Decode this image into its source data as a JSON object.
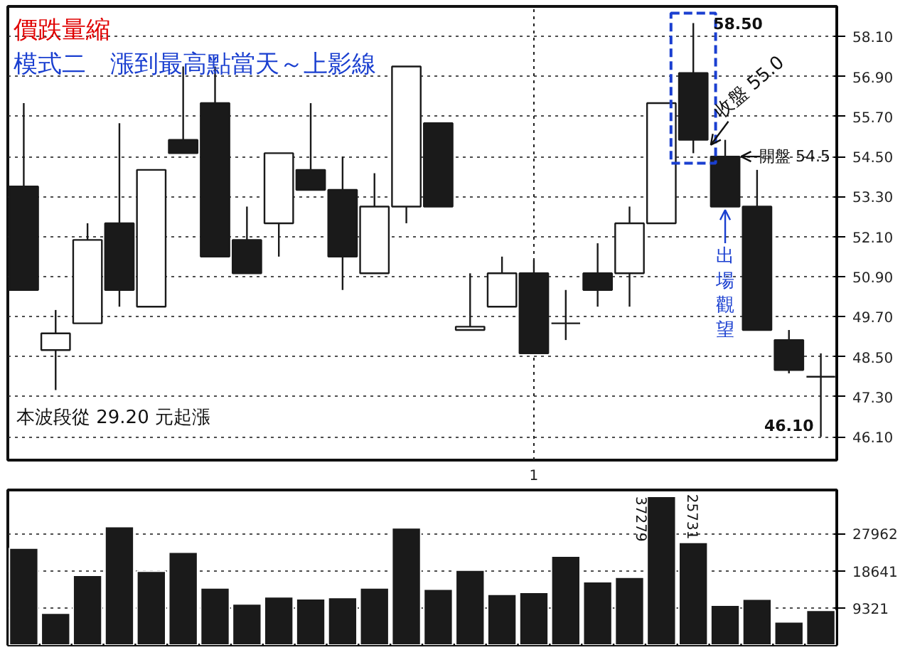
{
  "chart_data": [
    {
      "type": "candlestick",
      "title": "價跌量縮",
      "subtitle": "模式二　漲到最高點當天～上影線",
      "color": "#1a1a1a",
      "categories": [
        null,
        null,
        null,
        null,
        null,
        null,
        null,
        null,
        null,
        null,
        null,
        null,
        null,
        null,
        null,
        null,
        null,
        null,
        null,
        null,
        null,
        null,
        null,
        null,
        null,
        null
      ],
      "ohlc": [
        [
          53.6,
          56.1,
          50.5,
          50.5
        ],
        [
          48.7,
          49.9,
          47.5,
          49.2
        ],
        [
          49.5,
          52.5,
          49.5,
          52.0
        ],
        [
          52.5,
          55.5,
          50.0,
          50.5
        ],
        [
          50.0,
          54.1,
          50.0,
          54.1
        ],
        [
          55.0,
          57.2,
          54.6,
          54.6
        ],
        [
          56.1,
          57.2,
          51.5,
          51.5
        ],
        [
          52.0,
          53.0,
          51.0,
          51.0
        ],
        [
          52.5,
          54.6,
          51.5,
          54.6
        ],
        [
          54.1,
          56.1,
          53.5,
          53.5
        ],
        [
          53.5,
          54.5,
          50.5,
          51.5
        ],
        [
          51.0,
          54.0,
          51.0,
          53.0
        ],
        [
          53.0,
          57.2,
          52.5,
          57.2
        ],
        [
          55.5,
          55.5,
          53.0,
          53.0
        ],
        [
          49.3,
          51.0,
          49.3,
          49.4
        ],
        [
          50.0,
          51.5,
          50.0,
          51.0
        ],
        [
          51.0,
          51.4,
          48.6,
          48.6
        ],
        [
          49.5,
          50.5,
          49.0,
          49.5
        ],
        [
          51.0,
          51.9,
          50.0,
          50.5
        ],
        [
          51.0,
          53.0,
          50.0,
          52.5
        ],
        [
          52.5,
          56.1,
          52.5,
          56.1
        ],
        [
          57.0,
          58.5,
          54.6,
          55.0
        ],
        [
          54.5,
          55.0,
          53.0,
          53.0
        ],
        [
          53.0,
          54.1,
          49.3,
          49.3
        ],
        [
          49.0,
          49.3,
          48.0,
          48.1
        ],
        [
          47.9,
          48.6,
          46.1,
          47.9
        ]
      ],
      "ylim": [
        45.4,
        59.0
      ],
      "yticks": [
        {
          "value": 46.1,
          "label": "46.10"
        },
        {
          "value": 47.3,
          "label": "47.30"
        },
        {
          "value": 48.5,
          "label": "48.50"
        },
        {
          "value": 49.7,
          "label": "49.70"
        },
        {
          "value": 50.9,
          "label": "50.90"
        },
        {
          "value": 52.1,
          "label": "52.10"
        },
        {
          "value": 53.3,
          "label": "53.30"
        },
        {
          "value": 54.5,
          "label": "54.50"
        },
        {
          "value": 55.7,
          "label": "55.70"
        },
        {
          "value": 56.9,
          "label": "56.90"
        },
        {
          "value": 58.1,
          "label": "58.10"
        }
      ],
      "grid": true,
      "annotations": [
        "58.50",
        "收盤 55.0",
        "開盤 54.5",
        "出場觀望",
        "46.10",
        "本波段從 29.20 元起漲",
        "1"
      ]
    },
    {
      "type": "bar",
      "color": "#1a1a1a",
      "categories": [
        null,
        null,
        null,
        null,
        null,
        null,
        null,
        null,
        null,
        null,
        null,
        null,
        null,
        null,
        null,
        null,
        null,
        null,
        null,
        null,
        null,
        null,
        null,
        null,
        null,
        null
      ],
      "values": [
        24300,
        8000,
        17500,
        29700,
        18500,
        23300,
        14300,
        10300,
        12100,
        11600,
        11900,
        14300,
        29400,
        14000,
        18800,
        12700,
        13200,
        22300,
        15900,
        17000,
        37279,
        25731,
        10000,
        11500,
        5800,
        8700
      ],
      "value_labels": [
        null,
        null,
        null,
        null,
        null,
        null,
        null,
        null,
        null,
        null,
        null,
        null,
        null,
        null,
        null,
        null,
        null,
        null,
        null,
        null,
        "37279",
        "25731",
        null,
        null,
        null,
        null
      ],
      "ylim": [
        0,
        38900
      ],
      "yticks": [
        9321,
        18641,
        27962
      ],
      "grid": "y",
      "tick_labels": "y"
    }
  ]
}
